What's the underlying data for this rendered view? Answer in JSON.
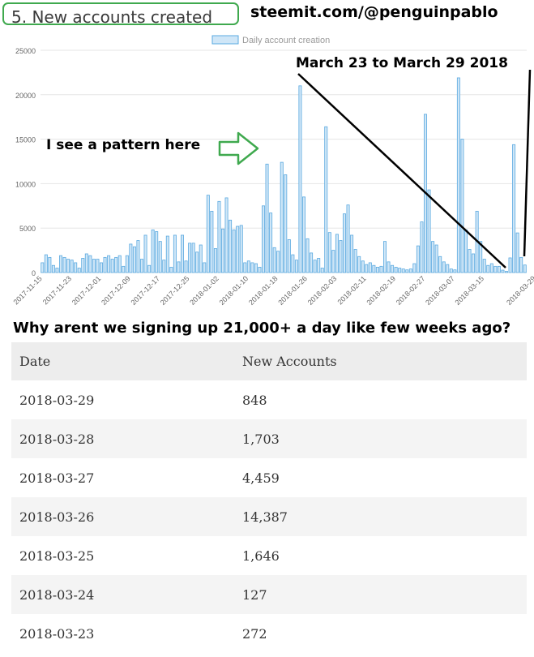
{
  "header": {
    "title": "5. New accounts created",
    "site": "steemit.com/@penguinpablo"
  },
  "annotations": {
    "date_range": "March 23 to March 29 2018",
    "pattern": "I see a pattern here",
    "question": "Why arent we signing up 21,000+ a day like few weeks ago?"
  },
  "colors": {
    "bar_fill": "#cfe6f7",
    "bar_stroke": "#5aa9e0",
    "arrow_green": "#3fa94e",
    "title_border": "#3fa94e"
  },
  "chart_data": {
    "type": "bar",
    "legend": [
      "Daily account creation"
    ],
    "legend_position": "top-center",
    "grid": true,
    "ylim": [
      0,
      25000
    ],
    "yticks": [
      "0",
      "5000",
      "10000",
      "15000",
      "20000",
      "25000"
    ],
    "xticks": [
      "2017-11-15",
      "2017-11-23",
      "2017-12-01",
      "2017-12-09",
      "2017-12-17",
      "2017-12-25",
      "2018-01-02",
      "2018-01-10",
      "2018-01-18",
      "2018-01-26",
      "2018-02-03",
      "2018-02-11",
      "2018-02-19",
      "2018-02-27",
      "2018-03-07",
      "2018-03-15",
      "2018-03-29"
    ],
    "start_date": "2017-11-15",
    "series": [
      {
        "name": "Daily account creation",
        "values": [
          1100,
          2000,
          1700,
          800,
          500,
          1900,
          1700,
          1500,
          1400,
          1100,
          500,
          1600,
          2100,
          1900,
          1500,
          1500,
          1100,
          1700,
          1900,
          1500,
          1700,
          1900,
          700,
          1900,
          3200,
          2900,
          3600,
          1500,
          4200,
          800,
          4800,
          4600,
          3500,
          1400,
          4100,
          600,
          4200,
          1200,
          4200,
          1300,
          3300,
          3300,
          2300,
          3100,
          1100,
          8700,
          6900,
          2700,
          8000,
          4900,
          8400,
          5900,
          4800,
          5200,
          5300,
          1100,
          1300,
          1100,
          1000,
          600,
          7500,
          12200,
          6700,
          2800,
          2400,
          12400,
          11000,
          3700,
          2000,
          1400,
          21000,
          8500,
          3800,
          2200,
          1400,
          1600,
          500,
          16400,
          4500,
          2500,
          4300,
          3600,
          6600,
          7600,
          4200,
          2600,
          1800,
          1300,
          900,
          1100,
          800,
          600,
          700,
          3500,
          1200,
          800,
          600,
          500,
          400,
          300,
          400,
          1000,
          3000,
          5700,
          17800,
          9300,
          3500,
          3100,
          1800,
          1200,
          900,
          400,
          300,
          21900,
          15000,
          4800,
          2600,
          2100,
          6900,
          3500,
          1500,
          800,
          1000,
          700,
          700,
          272,
          127,
          1646,
          14387,
          4459,
          1703,
          848
        ]
      }
    ]
  },
  "table": {
    "headers": [
      "Date",
      "New Accounts"
    ],
    "rows": [
      [
        "2018-03-29",
        "848"
      ],
      [
        "2018-03-28",
        "1,703"
      ],
      [
        "2018-03-27",
        "4,459"
      ],
      [
        "2018-03-26",
        "14,387"
      ],
      [
        "2018-03-25",
        "1,646"
      ],
      [
        "2018-03-24",
        "127"
      ],
      [
        "2018-03-23",
        "272"
      ]
    ]
  }
}
